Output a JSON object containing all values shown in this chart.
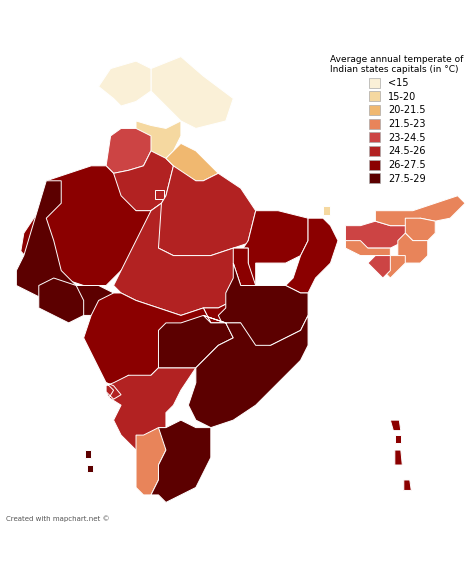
{
  "title": "Average annual temperate of\nIndian states capitals (in °C)",
  "legend_labels": [
    "<15",
    "15-20",
    "20-21.5",
    "21.5-23",
    "23-24.5",
    "24.5-26",
    "26-27.5",
    "27.5-29"
  ],
  "legend_colors": [
    "#faf0d7",
    "#f5d8a0",
    "#f0b870",
    "#e8845a",
    "#cc4444",
    "#b22222",
    "#8b0000",
    "#5c0000"
  ],
  "background_color": "#ffffff",
  "watermark": "Created with mapchart.net ©",
  "border_color": "#ffffff",
  "border_width": 0.7,
  "figsize": [
    4.74,
    5.71
  ],
  "dpi": 100,
  "color_map": {
    "<15": "#faf0d7",
    "15-20": "#f5d8a0",
    "20-21.5": "#f0b870",
    "21.5-23": "#e8845a",
    "23-24.5": "#cc4444",
    "24.5-26": "#b22222",
    "26-27.5": "#8b0000",
    "27.5-29": "#5c0000"
  },
  "state_temp_class": {
    "Jammu & Kashmir": "<15",
    "Ladakh": "<15",
    "Himachal Pradesh": "15-20",
    "Uttarakhand": "20-21.5",
    "Punjab": "23-24.5",
    "Haryana": "24.5-26",
    "NCT of Delhi": "24.5-26",
    "Uttar Pradesh": "24.5-26",
    "Rajasthan": "26-27.5",
    "Gujarat": "27.5-29",
    "Madhya Pradesh": "24.5-26",
    "Bihar": "24.5-26",
    "Jharkhand": "26-27.5",
    "West Bengal": "26-27.5",
    "Sikkim": "15-20",
    "Assam": "23-24.5",
    "Meghalaya": "21.5-23",
    "Arunachal Pradesh": "21.5-23",
    "Nagaland": "21.5-23",
    "Manipur": "21.5-23",
    "Mizoram": "21.5-23",
    "Tripura": "23-24.5",
    "Maharashtra": "26-27.5",
    "Chhattisgarh": "26-27.5",
    "Odisha": "27.5-29",
    "Goa": "26-27.5",
    "Karnataka": "24.5-26",
    "Telangana": "27.5-29",
    "Andhra Pradesh": "27.5-29",
    "Kerala": "21.5-23",
    "Tamil Nadu": "27.5-29",
    "Puducherry": "27.5-29",
    "Andaman & Nicobar": "26-27.5",
    "Lakshadweep": "27.5-29",
    "Chandigarh": "24.5-26",
    "Dadra and Nagar Haveli": "27.5-29",
    "Daman and Diu": "27.5-29"
  }
}
